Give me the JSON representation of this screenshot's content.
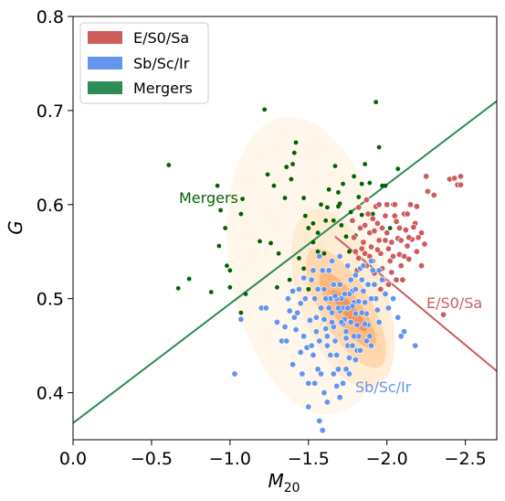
{
  "chart_data": {
    "type": "scatter",
    "x_axis": {
      "label_main": "M",
      "label_sub": "20",
      "range": [
        0.0,
        -2.7
      ],
      "reversed": true,
      "ticks": [
        0.0,
        -0.5,
        -1.0,
        -1.5,
        -2.0,
        -2.5
      ],
      "tick_labels": [
        "0.0",
        "−0.5",
        "−1.0",
        "−1.5",
        "−2.0",
        "−2.5"
      ]
    },
    "y_axis": {
      "label": "G",
      "range": [
        0.35,
        0.8
      ],
      "ticks": [
        0.4,
        0.5,
        0.6,
        0.7,
        0.8
      ],
      "tick_labels": [
        "0.4",
        "0.5",
        "0.6",
        "0.7",
        "0.8"
      ]
    },
    "legend": {
      "position": "top-left",
      "entries": [
        {
          "label": "E/S0/Sa",
          "color": "#cd5c5c"
        },
        {
          "label": "Sb/Sc/Ir",
          "color": "#6495ed"
        },
        {
          "label": "Mergers",
          "color": "#2e8b57"
        }
      ]
    },
    "region_labels": {
      "mergers": {
        "text": "Mergers",
        "color": "#006400"
      },
      "early": {
        "text": "E/S0/Sa",
        "color": "#cd5c5c"
      },
      "late": {
        "text": "Sb/Sc/Ir",
        "color": "#6495ed"
      }
    },
    "dividing_lines": {
      "merger_line": {
        "color": "#2e8b57",
        "from": [
          0.14,
          0.35
        ],
        "to": [
          -2.7,
          0.71
        ]
      },
      "early_late_line": {
        "color": "#cd5c5c",
        "from": [
          -1.67,
          0.566
        ],
        "to": [
          -2.7,
          0.423
        ]
      }
    },
    "density_contours": {
      "color_scale": [
        "#fff4e6",
        "#ffe8cc",
        "#fdd0a2",
        "#fdae6b",
        "#f08a4b"
      ]
    },
    "series": [
      {
        "name": "Mergers",
        "color": "#006400",
        "points": [
          [
            -0.61,
            0.642
          ],
          [
            -0.67,
            0.511
          ],
          [
            -0.74,
            0.521
          ],
          [
            -0.88,
            0.507
          ],
          [
            -0.92,
            0.62
          ],
          [
            -0.93,
            0.556
          ],
          [
            -0.94,
            0.594
          ],
          [
            -0.97,
            0.575
          ],
          [
            -0.98,
            0.535
          ],
          [
            -1.0,
            0.53
          ],
          [
            -1.0,
            0.512
          ],
          [
            -1.07,
            0.59
          ],
          [
            -1.08,
            0.606
          ],
          [
            -1.07,
            0.485
          ],
          [
            -1.1,
            0.505
          ],
          [
            -1.19,
            0.561
          ],
          [
            -1.22,
            0.701
          ],
          [
            -1.24,
            0.632
          ],
          [
            -1.28,
            0.62
          ],
          [
            -1.35,
            0.607
          ],
          [
            -1.36,
            0.64
          ],
          [
            -1.39,
            0.627
          ],
          [
            -1.4,
            0.643
          ],
          [
            -1.41,
            0.655
          ],
          [
            -1.42,
            0.666
          ],
          [
            -1.47,
            0.607
          ],
          [
            -1.26,
            0.559
          ],
          [
            -1.31,
            0.548
          ],
          [
            -1.3,
            0.512
          ],
          [
            -1.48,
            0.588
          ],
          [
            -1.5,
            0.575
          ],
          [
            -1.53,
            0.58
          ],
          [
            -1.56,
            0.57
          ],
          [
            -1.61,
            0.583
          ],
          [
            -1.62,
            0.597
          ],
          [
            -1.66,
            0.583
          ],
          [
            -1.69,
            0.613
          ],
          [
            -1.7,
            0.601
          ],
          [
            -1.71,
            0.578
          ],
          [
            -1.74,
            0.566
          ],
          [
            -1.76,
            0.55
          ],
          [
            -1.67,
            0.641
          ],
          [
            -1.72,
            0.622
          ],
          [
            -1.79,
            0.63
          ],
          [
            -1.82,
            0.608
          ],
          [
            -1.84,
            0.589
          ],
          [
            -1.86,
            0.643
          ],
          [
            -1.89,
            0.623
          ],
          [
            -1.93,
            0.709
          ],
          [
            -1.95,
            0.661
          ],
          [
            -1.97,
            0.62
          ],
          [
            -2.02,
            0.575
          ],
          [
            -2.04,
            0.6
          ],
          [
            -2.07,
            0.638
          ],
          [
            -1.77,
            0.592
          ],
          [
            -1.6,
            0.548
          ],
          [
            -1.56,
            0.55
          ],
          [
            -1.53,
            0.56
          ],
          [
            -1.47,
            0.532
          ],
          [
            -1.44,
            0.543
          ],
          [
            -1.5,
            0.51
          ],
          [
            -1.38,
            0.52
          ],
          [
            -1.63,
            0.616
          ],
          [
            -1.69,
            0.598
          ],
          [
            -1.8,
            0.567
          ],
          [
            -1.58,
            0.6
          ],
          [
            -1.84,
            0.622
          ],
          [
            -1.99,
            0.62
          ],
          [
            -1.91,
            0.59
          ]
        ]
      },
      {
        "name": "E/S0/Sa",
        "color": "#cd5c5c",
        "points": [
          [
            -1.79,
            0.565
          ],
          [
            -1.8,
            0.55
          ],
          [
            -1.82,
            0.543
          ],
          [
            -1.83,
            0.575
          ],
          [
            -1.85,
            0.56
          ],
          [
            -1.86,
            0.548
          ],
          [
            -1.87,
            0.535
          ],
          [
            -1.88,
            0.59
          ],
          [
            -1.89,
            0.57
          ],
          [
            -1.9,
            0.555
          ],
          [
            -1.91,
            0.54
          ],
          [
            -1.92,
            0.527
          ],
          [
            -1.93,
            0.598
          ],
          [
            -1.94,
            0.58
          ],
          [
            -1.95,
            0.562
          ],
          [
            -1.96,
            0.548
          ],
          [
            -1.97,
            0.532
          ],
          [
            -1.98,
            0.52
          ],
          [
            -1.99,
            0.588
          ],
          [
            -2.0,
            0.57
          ],
          [
            -2.01,
            0.553
          ],
          [
            -2.02,
            0.54
          ],
          [
            -2.03,
            0.528
          ],
          [
            -2.05,
            0.6
          ],
          [
            -2.06,
            0.582
          ],
          [
            -2.07,
            0.564
          ],
          [
            -2.08,
            0.547
          ],
          [
            -2.09,
            0.535
          ],
          [
            -2.1,
            0.52
          ],
          [
            -2.11,
            0.59
          ],
          [
            -2.12,
            0.573
          ],
          [
            -2.13,
            0.556
          ],
          [
            -2.14,
            0.542
          ],
          [
            -2.15,
            0.6
          ],
          [
            -2.16,
            0.563
          ],
          [
            -2.18,
            0.58
          ],
          [
            -2.19,
            0.55
          ],
          [
            -2.2,
            0.565
          ],
          [
            -2.22,
            0.535
          ],
          [
            -2.24,
            0.558
          ],
          [
            -2.25,
            0.63
          ],
          [
            -2.26,
            0.614
          ],
          [
            -2.3,
            0.61
          ],
          [
            -2.36,
            0.483
          ],
          [
            -2.4,
            0.627
          ],
          [
            -2.43,
            0.628
          ],
          [
            -2.45,
            0.621
          ],
          [
            -2.47,
            0.63
          ],
          [
            -2.47,
            0.621
          ],
          [
            -1.82,
            0.597
          ],
          [
            -1.87,
            0.605
          ],
          [
            -1.92,
            0.572
          ],
          [
            -1.97,
            0.575
          ],
          [
            -2.03,
            0.56
          ],
          [
            -2.08,
            0.575
          ],
          [
            -2.13,
            0.59
          ],
          [
            -2.17,
            0.576
          ],
          [
            -1.84,
            0.553
          ],
          [
            -1.89,
            0.545
          ],
          [
            -1.94,
            0.552
          ],
          [
            -1.99,
            0.562
          ],
          [
            -2.04,
            0.545
          ],
          [
            -2.09,
            0.562
          ],
          [
            -2.14,
            0.565
          ],
          [
            -1.96,
            0.51
          ],
          [
            -2.01,
            0.515
          ],
          [
            -2.06,
            0.52
          ],
          [
            -1.78,
            0.583
          ],
          [
            -1.81,
            0.53
          ],
          [
            -2.0,
            0.6
          ],
          [
            -2.11,
            0.545
          ],
          [
            -1.86,
            0.578
          ],
          [
            -1.91,
            0.585
          ],
          [
            -2.22,
            0.57
          ],
          [
            -2.19,
            0.598
          ],
          [
            -1.95,
            0.6
          ],
          [
            -2.05,
            0.588
          ]
        ]
      },
      {
        "name": "Sb/Sc/Ir",
        "color": "#6495ed",
        "points": [
          [
            -1.03,
            0.42
          ],
          [
            -1.07,
            0.478
          ],
          [
            -1.2,
            0.49
          ],
          [
            -1.23,
            0.49
          ],
          [
            -1.3,
            0.475
          ],
          [
            -1.33,
            0.455
          ],
          [
            -1.36,
            0.455
          ],
          [
            -1.38,
            0.487
          ],
          [
            -1.4,
            0.508
          ],
          [
            -1.4,
            0.43
          ],
          [
            -1.41,
            0.48
          ],
          [
            -1.42,
            0.467
          ],
          [
            -1.44,
            0.51
          ],
          [
            -1.45,
            0.495
          ],
          [
            -1.45,
            0.443
          ],
          [
            -1.47,
            0.522
          ],
          [
            -1.48,
            0.5
          ],
          [
            -1.49,
            0.448
          ],
          [
            -1.5,
            0.385
          ],
          [
            -1.51,
            0.477
          ],
          [
            -1.52,
            0.52
          ],
          [
            -1.53,
            0.44
          ],
          [
            -1.54,
            0.5
          ],
          [
            -1.55,
            0.465
          ],
          [
            -1.56,
            0.425
          ],
          [
            -1.57,
            0.545
          ],
          [
            -1.58,
            0.49
          ],
          [
            -1.59,
            0.36
          ],
          [
            -1.6,
            0.51
          ],
          [
            -1.61,
            0.468
          ],
          [
            -1.62,
            0.45
          ],
          [
            -1.63,
            0.53
          ],
          [
            -1.64,
            0.5
          ],
          [
            -1.65,
            0.485
          ],
          [
            -1.66,
            0.47
          ],
          [
            -1.67,
            0.455
          ],
          [
            -1.68,
            0.44
          ],
          [
            -1.69,
            0.425
          ],
          [
            -1.7,
            0.515
          ],
          [
            -1.71,
            0.5
          ],
          [
            -1.72,
            0.49
          ],
          [
            -1.73,
            0.478
          ],
          [
            -1.74,
            0.465
          ],
          [
            -1.75,
            0.45
          ],
          [
            -1.76,
            0.437
          ],
          [
            -1.77,
            0.52
          ],
          [
            -1.78,
            0.508
          ],
          [
            -1.79,
            0.496
          ],
          [
            -1.8,
            0.484
          ],
          [
            -1.81,
            0.472
          ],
          [
            -1.82,
            0.46
          ],
          [
            -1.83,
            0.532
          ],
          [
            -1.84,
            0.52
          ],
          [
            -1.85,
            0.508
          ],
          [
            -1.86,
            0.496
          ],
          [
            -1.87,
            0.484
          ],
          [
            -1.88,
            0.472
          ],
          [
            -1.89,
            0.46
          ],
          [
            -1.9,
            0.45
          ],
          [
            -1.91,
            0.53
          ],
          [
            -1.92,
            0.515
          ],
          [
            -1.93,
            0.5
          ],
          [
            -1.94,
            0.488
          ],
          [
            -1.95,
            0.475
          ],
          [
            -1.97,
            0.52
          ],
          [
            -1.99,
            0.505
          ],
          [
            -2.01,
            0.49
          ],
          [
            -2.04,
            0.5
          ],
          [
            -2.07,
            0.48
          ],
          [
            -2.09,
            0.46
          ],
          [
            -2.11,
            0.465
          ],
          [
            -2.18,
            0.45
          ],
          [
            -1.66,
            0.515
          ],
          [
            -1.68,
            0.5
          ],
          [
            -1.7,
            0.487
          ],
          [
            -1.72,
            0.473
          ],
          [
            -1.74,
            0.458
          ],
          [
            -1.76,
            0.505
          ],
          [
            -1.78,
            0.492
          ],
          [
            -1.8,
            0.51
          ],
          [
            -1.82,
            0.497
          ],
          [
            -1.84,
            0.485
          ],
          [
            -1.86,
            0.473
          ],
          [
            -1.88,
            0.515
          ],
          [
            -1.9,
            0.5
          ],
          [
            -1.63,
            0.49
          ],
          [
            -1.65,
            0.475
          ],
          [
            -1.67,
            0.503
          ],
          [
            -1.69,
            0.49
          ],
          [
            -1.71,
            0.475
          ],
          [
            -1.73,
            0.505
          ],
          [
            -1.75,
            0.49
          ],
          [
            -1.77,
            0.475
          ],
          [
            -1.79,
            0.46
          ],
          [
            -1.81,
            0.445
          ],
          [
            -1.61,
            0.5
          ],
          [
            -1.6,
            0.478
          ],
          [
            -1.62,
            0.46
          ],
          [
            -1.64,
            0.44
          ],
          [
            -1.66,
            0.42
          ],
          [
            -1.68,
            0.407
          ],
          [
            -1.7,
            0.395
          ],
          [
            -1.72,
            0.41
          ],
          [
            -1.74,
            0.425
          ],
          [
            -1.58,
            0.42
          ],
          [
            -1.6,
            0.4
          ],
          [
            -1.54,
            0.41
          ],
          [
            -1.5,
            0.41
          ],
          [
            -1.46,
            0.42
          ],
          [
            -1.62,
            0.39
          ],
          [
            -1.57,
            0.455
          ],
          [
            -1.55,
            0.48
          ],
          [
            -1.53,
            0.53
          ],
          [
            -1.56,
            0.51
          ],
          [
            -1.59,
            0.53
          ],
          [
            -1.65,
            0.54
          ],
          [
            -1.7,
            0.545
          ],
          [
            -1.75,
            0.535
          ],
          [
            -1.8,
            0.525
          ],
          [
            -1.85,
            0.535
          ],
          [
            -1.9,
            0.54
          ],
          [
            -1.95,
            0.53
          ],
          [
            -1.37,
            0.5
          ],
          [
            -1.35,
            0.47
          ],
          [
            -1.43,
            0.485
          ],
          [
            -1.47,
            0.46
          ],
          [
            -1.52,
            0.45
          ],
          [
            -1.57,
            0.37
          ],
          [
            -1.8,
            0.435
          ],
          [
            -1.83,
            0.445
          ],
          [
            -1.87,
            0.455
          ],
          [
            -1.78,
            0.45
          ],
          [
            -1.76,
            0.42
          ]
        ]
      }
    ]
  }
}
